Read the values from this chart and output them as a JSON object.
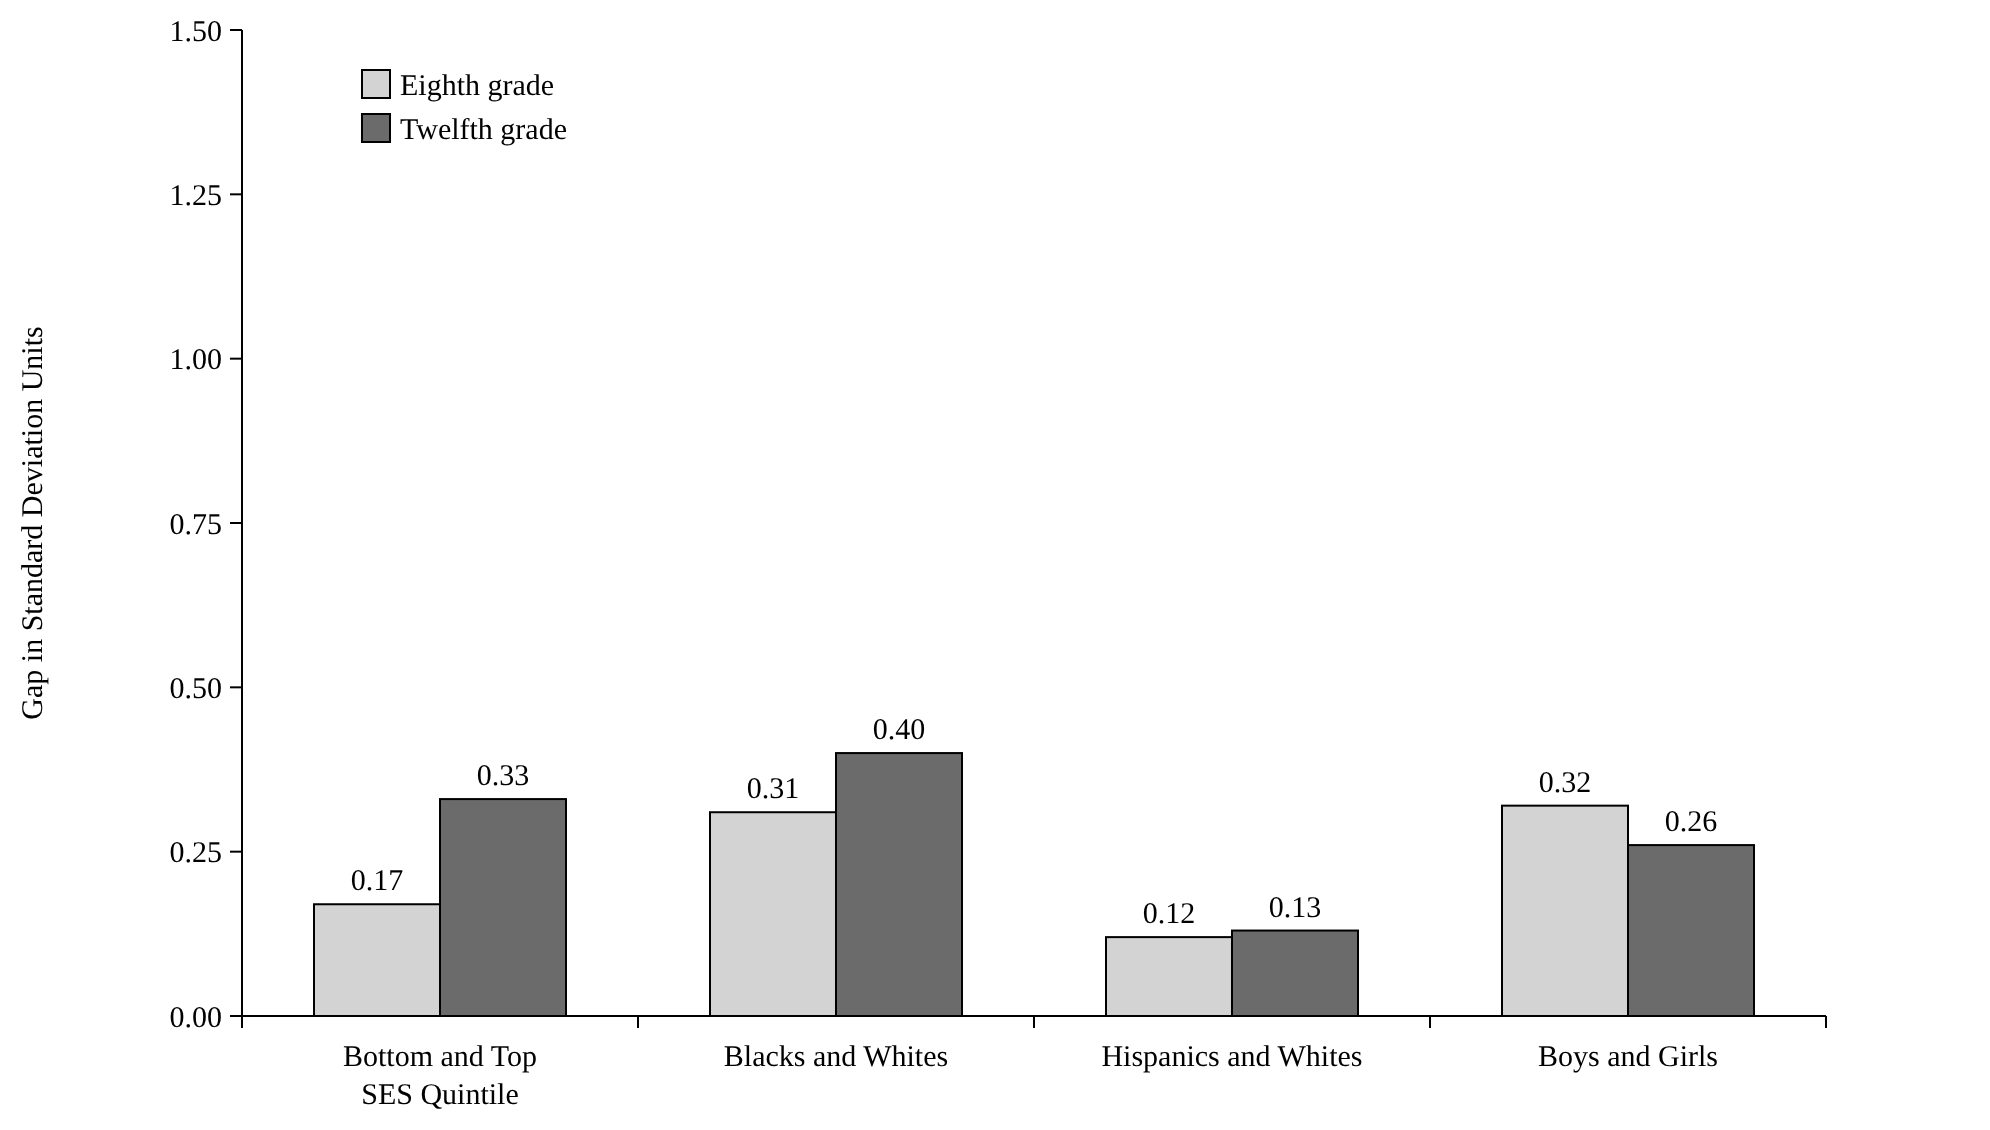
{
  "chart_data": {
    "type": "bar",
    "ylabel": "Gap in Standard Deviation Units",
    "categories": [
      "Bottom and Top\nSES Quintile",
      "Blacks and Whites",
      "Hispanics and Whites",
      "Boys and Girls"
    ],
    "series": [
      {
        "name": "Eighth grade",
        "color": "#d3d3d3",
        "values": [
          0.17,
          0.31,
          0.12,
          0.32
        ],
        "value_labels": [
          "0.17",
          "0.31",
          "0.12",
          "0.32"
        ]
      },
      {
        "name": "Twelfth grade",
        "color": "#6b6b6b",
        "values": [
          0.33,
          0.4,
          0.13,
          0.26
        ],
        "value_labels": [
          "0.33",
          "0.40",
          "0.13",
          "0.26"
        ]
      }
    ],
    "ylim": [
      0,
      1.5
    ],
    "yticks": [
      {
        "value": 0,
        "label": "0.00"
      },
      {
        "value": 0.25,
        "label": "0.25"
      },
      {
        "value": 0.5,
        "label": "0.50"
      },
      {
        "value": 0.75,
        "label": "0.75"
      },
      {
        "value": 1,
        "label": "1.00"
      },
      {
        "value": 1.25,
        "label": "1.25"
      },
      {
        "value": 1.5,
        "label": "1.50"
      }
    ],
    "legend": "top left",
    "grid": false
  }
}
